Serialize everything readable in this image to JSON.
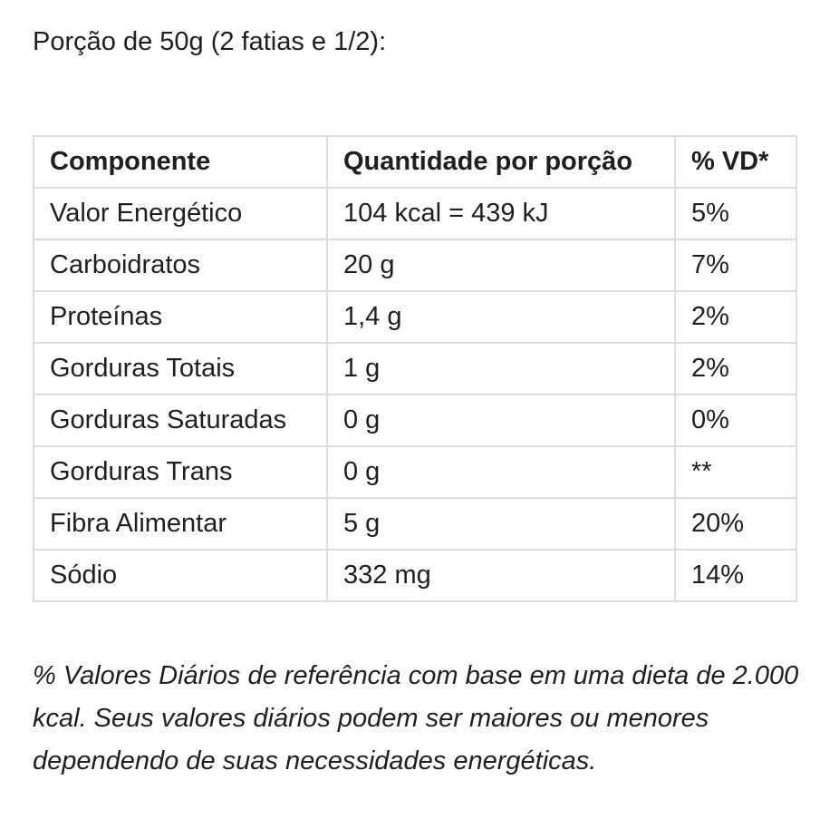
{
  "serving_text": "Porção de 50g (2 fatias e 1/2):",
  "table": {
    "headers": [
      "Componente",
      "Quantidade por porção",
      "% VD*"
    ],
    "rows": [
      [
        "Valor Energético",
        "104 kcal = 439 kJ",
        "5%"
      ],
      [
        "Carboidratos",
        "20 g",
        "7%"
      ],
      [
        "Proteínas",
        "1,4 g",
        "2%"
      ],
      [
        "Gorduras Totais",
        "1 g",
        "2%"
      ],
      [
        "Gorduras Saturadas",
        "0 g",
        "0%"
      ],
      [
        "Gorduras Trans",
        "0 g",
        "**"
      ],
      [
        "Fibra Alimentar",
        "5 g",
        "20%"
      ],
      [
        "Sódio",
        "332 mg",
        "14%"
      ]
    ]
  },
  "footnote": "% Valores Diários de referência com base em uma dieta de 2.000 kcal. Seus valores diários podem ser maiores ou menores dependendo de suas necessidades energéticas."
}
